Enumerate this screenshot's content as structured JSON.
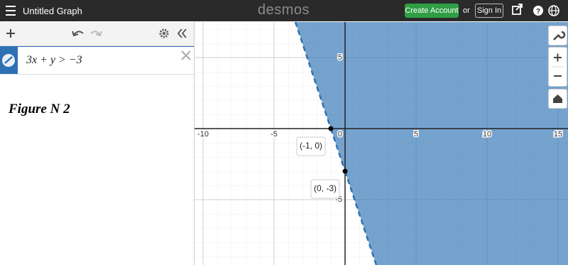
{
  "header": {
    "title": "Untitled Graph",
    "brand": "desmos",
    "create_account": "Create Account",
    "or": "or",
    "sign_in": "Sign In"
  },
  "expression": {
    "text": "3x + y > −3"
  },
  "note": "Figure N 2",
  "chart_data": {
    "type": "scatter",
    "color": "#2d70b3",
    "grid": true,
    "xlim": [
      -10.6,
      15.7
    ],
    "ylim": [
      -9.6,
      7.5
    ],
    "xticks": [
      -10,
      -5,
      0,
      5,
      10,
      15
    ],
    "yticks": [
      -5,
      5
    ],
    "points": [
      {
        "x": -1,
        "y": 0,
        "label": "(-1, 0)"
      },
      {
        "x": 0,
        "y": -3,
        "label": "(0, -3)"
      }
    ]
  }
}
